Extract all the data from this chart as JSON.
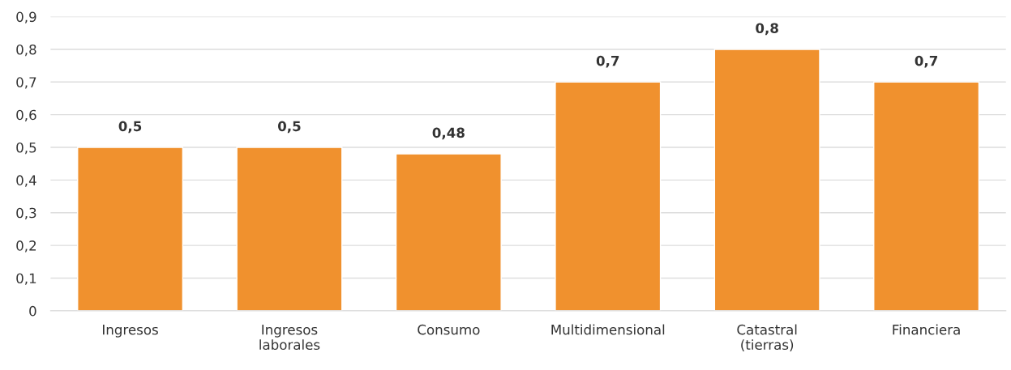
{
  "chart_data": {
    "type": "bar",
    "categories": [
      "Ingresos",
      "Ingresos\nlaborales",
      "Consumo",
      "Multidimensional",
      "Catastral\n(tierras)",
      "Financiera"
    ],
    "values": [
      0.5,
      0.5,
      0.48,
      0.7,
      0.8,
      0.7
    ],
    "value_labels": [
      "0,5",
      "0,5",
      "0,48",
      "0,7",
      "0,8",
      "0,7"
    ],
    "color": "#f0912e",
    "ylim": [
      0,
      0.9
    ],
    "yticks": [
      {
        "value": 0,
        "label": "0"
      },
      {
        "value": 0.1,
        "label": "0,1"
      },
      {
        "value": 0.2,
        "label": "0,2"
      },
      {
        "value": 0.3,
        "label": "0,3"
      },
      {
        "value": 0.4,
        "label": "0,4"
      },
      {
        "value": 0.5,
        "label": "0,5"
      },
      {
        "value": 0.6,
        "label": "0,6"
      },
      {
        "value": 0.7,
        "label": "0,7"
      },
      {
        "value": 0.8,
        "label": "0,8"
      },
      {
        "value": 0.9,
        "label": "0,9"
      }
    ],
    "grid": "y"
  }
}
